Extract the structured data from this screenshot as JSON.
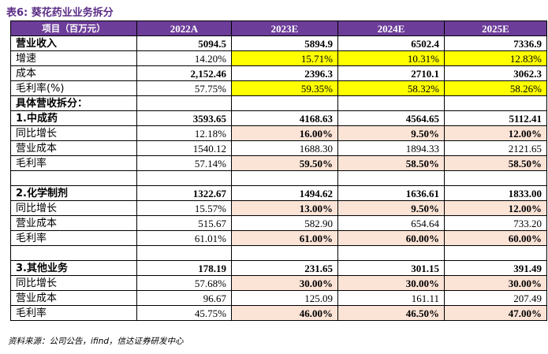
{
  "title": "表6: 葵花药业业务拆分",
  "source": "资料来源：公司公告，ifind，信达证券研发中心",
  "table": {
    "headers": [
      "项目（百万元）",
      "2022A",
      "2023E",
      "2024E",
      "2025E"
    ],
    "rows": [
      {
        "cells": [
          "营业收入",
          "5094.5",
          "5894.9",
          "6502.4",
          "7336.9"
        ]
      },
      {
        "cells": [
          "增速",
          "14.20%",
          "15.71%",
          "10.31%",
          "12.83%"
        ]
      },
      {
        "cells": [
          "成本",
          "2,152.46",
          "2396.3",
          "2710.1",
          "3062.3"
        ]
      },
      {
        "cells": [
          "毛利率(%)",
          "57.75%",
          "59.35%",
          "58.32%",
          "58.26%"
        ]
      },
      {
        "cells": [
          "具体营收拆分：",
          "",
          "",
          "",
          ""
        ]
      },
      {
        "cells": [
          "1.中成药",
          "3593.65",
          "4168.63",
          "4564.65",
          "5112.41"
        ]
      },
      {
        "cells": [
          "同比增长",
          "12.18%",
          "16.00%",
          "9.50%",
          "12.00%"
        ]
      },
      {
        "cells": [
          "营业成本",
          "1540.12",
          "1688.30",
          "1894.33",
          "2121.65"
        ]
      },
      {
        "cells": [
          "毛利率",
          "57.14%",
          "59.50%",
          "58.50%",
          "58.50%"
        ]
      },
      {
        "cells": [
          "",
          "",
          "",
          "",
          ""
        ]
      },
      {
        "cells": [
          "2.化学制剂",
          "1322.67",
          "1494.62",
          "1636.61",
          "1833.00"
        ]
      },
      {
        "cells": [
          "同比增长",
          "15.57%",
          "13.00%",
          "9.50%",
          "12.00%"
        ]
      },
      {
        "cells": [
          "营业成本",
          "515.67",
          "582.90",
          "654.64",
          "733.20"
        ]
      },
      {
        "cells": [
          "毛利率",
          "61.01%",
          "61.00%",
          "60.00%",
          "60.00%"
        ]
      },
      {
        "cells": [
          "",
          "",
          "",
          "",
          ""
        ]
      },
      {
        "cells": [
          "3.其他业务",
          "178.19",
          "231.65",
          "301.15",
          "391.49"
        ]
      },
      {
        "cells": [
          "同比增长",
          "57.68%",
          "30.00%",
          "30.00%",
          "30.00%"
        ]
      },
      {
        "cells": [
          "营业成本",
          "96.67",
          "125.09",
          "161.11",
          "207.49"
        ]
      },
      {
        "cells": [
          "毛利率",
          "45.75%",
          "46.00%",
          "46.50%",
          "47.00%"
        ]
      }
    ]
  },
  "colors": {
    "header_bg": "#6c3d99",
    "title_color": "#5b2d86",
    "highlight_yellow": "#ffff00",
    "highlight_pink": "#fbe3d6"
  }
}
